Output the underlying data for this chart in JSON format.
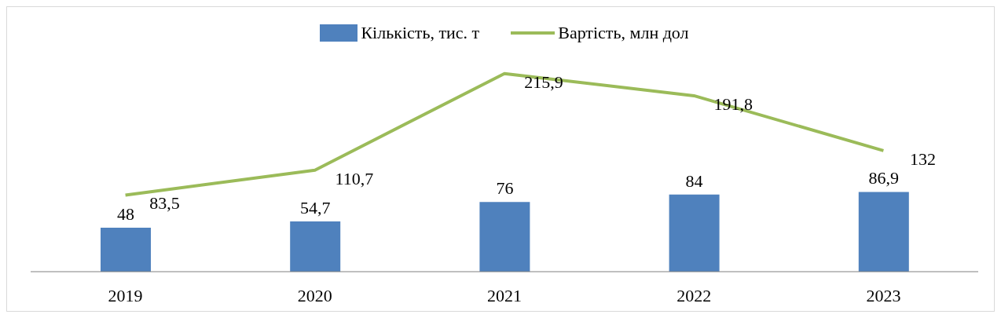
{
  "chart_data": {
    "type": "bar",
    "categories": [
      "2019",
      "2020",
      "2021",
      "2022",
      "2023"
    ],
    "series": [
      {
        "name": "Кількість, тис. т",
        "color": "#4f81bd",
        "values": [
          48,
          54.7,
          76,
          84,
          86.9
        ],
        "value_labels": [
          "48",
          "54,7",
          "76",
          "84",
          "86,9"
        ]
      },
      {
        "name": "Вартість, млн дол",
        "type": "line",
        "color": "#9bbb59",
        "values": [
          83.5,
          110.7,
          215.9,
          191.8,
          132
        ],
        "value_labels": [
          "83,5",
          "110,7",
          "215,9",
          "191,8",
          "132"
        ]
      }
    ],
    "legend": "top",
    "grid": false,
    "marker": "none"
  }
}
